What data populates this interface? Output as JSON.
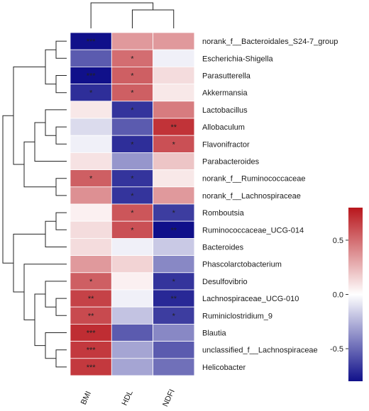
{
  "chart_data": {
    "type": "heatmap",
    "columns": [
      "BMI",
      "HDL",
      "NDFI"
    ],
    "rows": [
      "norank_f__Bacteroidales_S24-7_group",
      "Escherichia-Shigella",
      "Parasutterella",
      "Akkermansia",
      "Lactobacillus",
      "Allobaculum",
      "Flavonifractor",
      "Parabacteroides",
      "norank_f__Ruminococcaceae",
      "norank_f__Lachnospiraceae",
      "Romboutsia",
      "Ruminococcaceae_UCG-014",
      "Bacteroides",
      "Phascolarctobacterium",
      "Desulfovibrio",
      "Lachnospiraceae_UCG-010",
      "Ruminiclostridium_9",
      "Blautia",
      "unclassified_f__Lachnospiraceae",
      "Helicobacter"
    ],
    "values": [
      [
        -0.85,
        0.35,
        0.35
      ],
      [
        -0.55,
        0.5,
        -0.05
      ],
      [
        -0.85,
        0.55,
        0.12
      ],
      [
        -0.7,
        0.55,
        0.08
      ],
      [
        0.08,
        -0.68,
        0.45
      ],
      [
        -0.12,
        -0.55,
        0.7
      ],
      [
        -0.05,
        -0.7,
        0.6
      ],
      [
        0.1,
        -0.35,
        0.2
      ],
      [
        0.55,
        -0.68,
        0.08
      ],
      [
        0.38,
        -0.68,
        0.35
      ],
      [
        0.05,
        0.58,
        -0.65
      ],
      [
        0.12,
        0.6,
        -0.8
      ],
      [
        0.12,
        -0.05,
        -0.18
      ],
      [
        0.35,
        0.15,
        -0.4
      ],
      [
        0.55,
        0.05,
        -0.68
      ],
      [
        0.65,
        -0.05,
        -0.72
      ],
      [
        0.62,
        -0.2,
        -0.65
      ],
      [
        0.72,
        -0.55,
        -0.4
      ],
      [
        0.68,
        -0.3,
        -0.55
      ],
      [
        0.68,
        -0.3,
        -0.48
      ]
    ],
    "significance": [
      [
        "***",
        "",
        ""
      ],
      [
        "",
        "*",
        ""
      ],
      [
        "***",
        "*",
        ""
      ],
      [
        "*",
        "*",
        ""
      ],
      [
        "",
        "*",
        ""
      ],
      [
        "",
        "",
        "**"
      ],
      [
        "",
        "*",
        "*"
      ],
      [
        "",
        "",
        ""
      ],
      [
        "*",
        "*",
        ""
      ],
      [
        "",
        "*",
        ""
      ],
      [
        "",
        "*",
        "*"
      ],
      [
        "",
        "*",
        "**"
      ],
      [
        "",
        "",
        ""
      ],
      [
        "",
        "",
        ""
      ],
      [
        "*",
        "",
        "*"
      ],
      [
        "**",
        "",
        "**"
      ],
      [
        "**",
        "",
        "*"
      ],
      [
        "***",
        "",
        ""
      ],
      [
        "***",
        "",
        ""
      ],
      [
        "***",
        "",
        ""
      ]
    ],
    "color_scale": {
      "min": -0.8,
      "max": 0.8,
      "low_color": "#10108a",
      "mid_color": "#ffffff",
      "high_color": "#b8161c"
    },
    "legend_ticks": [
      0.5,
      0.0,
      -0.5
    ],
    "legend_tick_labels": [
      "0.5",
      "0.0",
      "-0.5"
    ],
    "legend_placement": "right",
    "dendrograms": {
      "rows": true,
      "columns": true
    }
  }
}
